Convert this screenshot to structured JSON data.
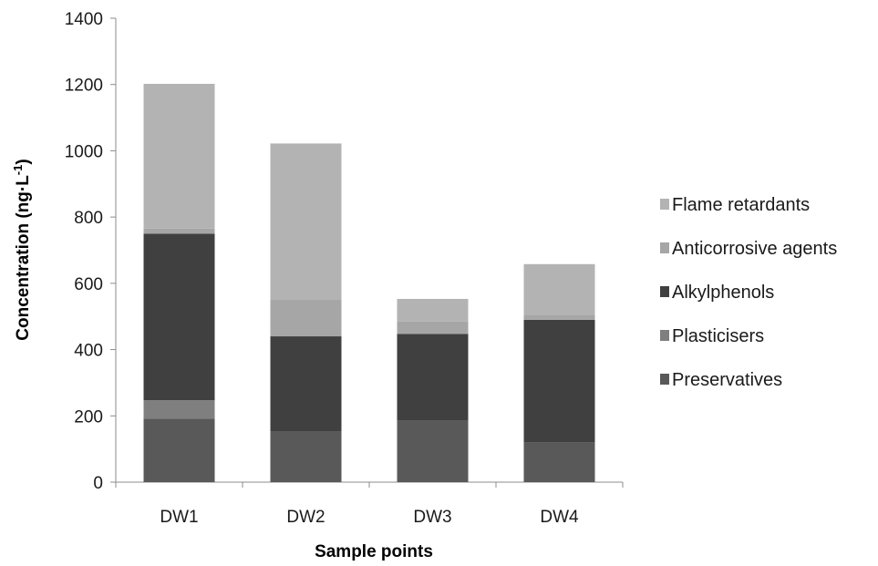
{
  "chart_data": {
    "type": "bar",
    "stacked": true,
    "categories": [
      "DW1",
      "DW2",
      "DW3",
      "DW4"
    ],
    "series": [
      {
        "name": "Preservatives",
        "values": [
          192,
          152,
          185,
          120
        ],
        "color": "#595959"
      },
      {
        "name": "Plasticisers",
        "values": [
          55,
          0,
          0,
          0
        ],
        "color": "#7f7f7f"
      },
      {
        "name": "Alkylphenols",
        "values": [
          503,
          288,
          262,
          370
        ],
        "color": "#404040"
      },
      {
        "name": "Anticorrosive agents",
        "values": [
          15,
          112,
          38,
          15
        ],
        "color": "#a6a6a6"
      },
      {
        "name": "Flame retardants",
        "values": [
          437,
          470,
          68,
          153
        ],
        "color": "#b3b3b3"
      }
    ],
    "xlabel": "Sample points",
    "ylabel": "Concentration (ng·L",
    "ylabel_sup": "-1",
    "ylabel_end": ")",
    "ylim": [
      0,
      1400
    ],
    "yticks": [
      0,
      200,
      400,
      600,
      800,
      1000,
      1200,
      1400
    ],
    "grid": false,
    "legend_position": "right",
    "legend_order": [
      "Flame retardants",
      "Anticorrosive agents",
      "Alkylphenols",
      "Plasticisers",
      "Preservatives"
    ]
  }
}
